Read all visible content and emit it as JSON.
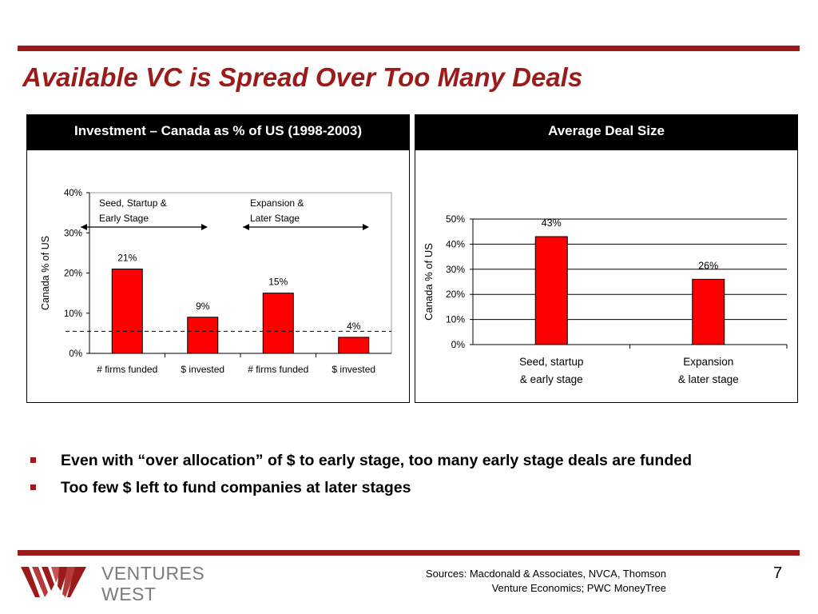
{
  "slide": {
    "title": "Available VC is Spread Over Too Many Deals",
    "page_number": "7",
    "sources": [
      "Sources: Macdonald & Associates, NVCA, Thomson",
      "Venture Economics; PWC MoneyTree"
    ],
    "logo": {
      "line1": "VENTURES",
      "line2": "WEST"
    },
    "colors": {
      "accent": "#9b1b1b",
      "bar": "#ff0000",
      "header_bg": "#000000",
      "logo_text": "#7a7a7a"
    }
  },
  "bullets": [
    "Even with “over allocation” of $ to early stage, too many early stage deals are funded",
    "Too few $ left to fund companies at later stages"
  ],
  "chart_data": [
    {
      "type": "bar",
      "title": "Investment – Canada as % of US (1998-2003)",
      "categories": [
        "# firms funded",
        "$ invested",
        "# firms funded",
        "$ invested"
      ],
      "values": [
        21,
        9,
        15,
        4
      ],
      "value_labels": [
        "21%",
        "9%",
        "15%",
        "4%"
      ],
      "ylabel": "Canada % of US",
      "ylim": [
        0,
        40
      ],
      "yticks": [
        "0%",
        "10%",
        "20%",
        "30%",
        "40%"
      ],
      "reference_line": 5.5,
      "groups": [
        {
          "label_lines": [
            "Seed, Startup &",
            "Early Stage"
          ],
          "categories": [
            0,
            1
          ]
        },
        {
          "label_lines": [
            "Expansion &",
            "Later Stage"
          ],
          "categories": [
            2,
            3
          ]
        }
      ],
      "grid": false,
      "legend": "none"
    },
    {
      "type": "bar",
      "title": "Average Deal Size",
      "categories": [
        "Seed, startup|& early stage",
        "Expansion|& later stage"
      ],
      "values": [
        43,
        26
      ],
      "value_labels": [
        "43%",
        "26%"
      ],
      "ylabel": "Canada % of US",
      "ylim": [
        0,
        50
      ],
      "yticks": [
        "0%",
        "10%",
        "20%",
        "30%",
        "40%",
        "50%"
      ],
      "grid": true,
      "legend": "none"
    }
  ]
}
